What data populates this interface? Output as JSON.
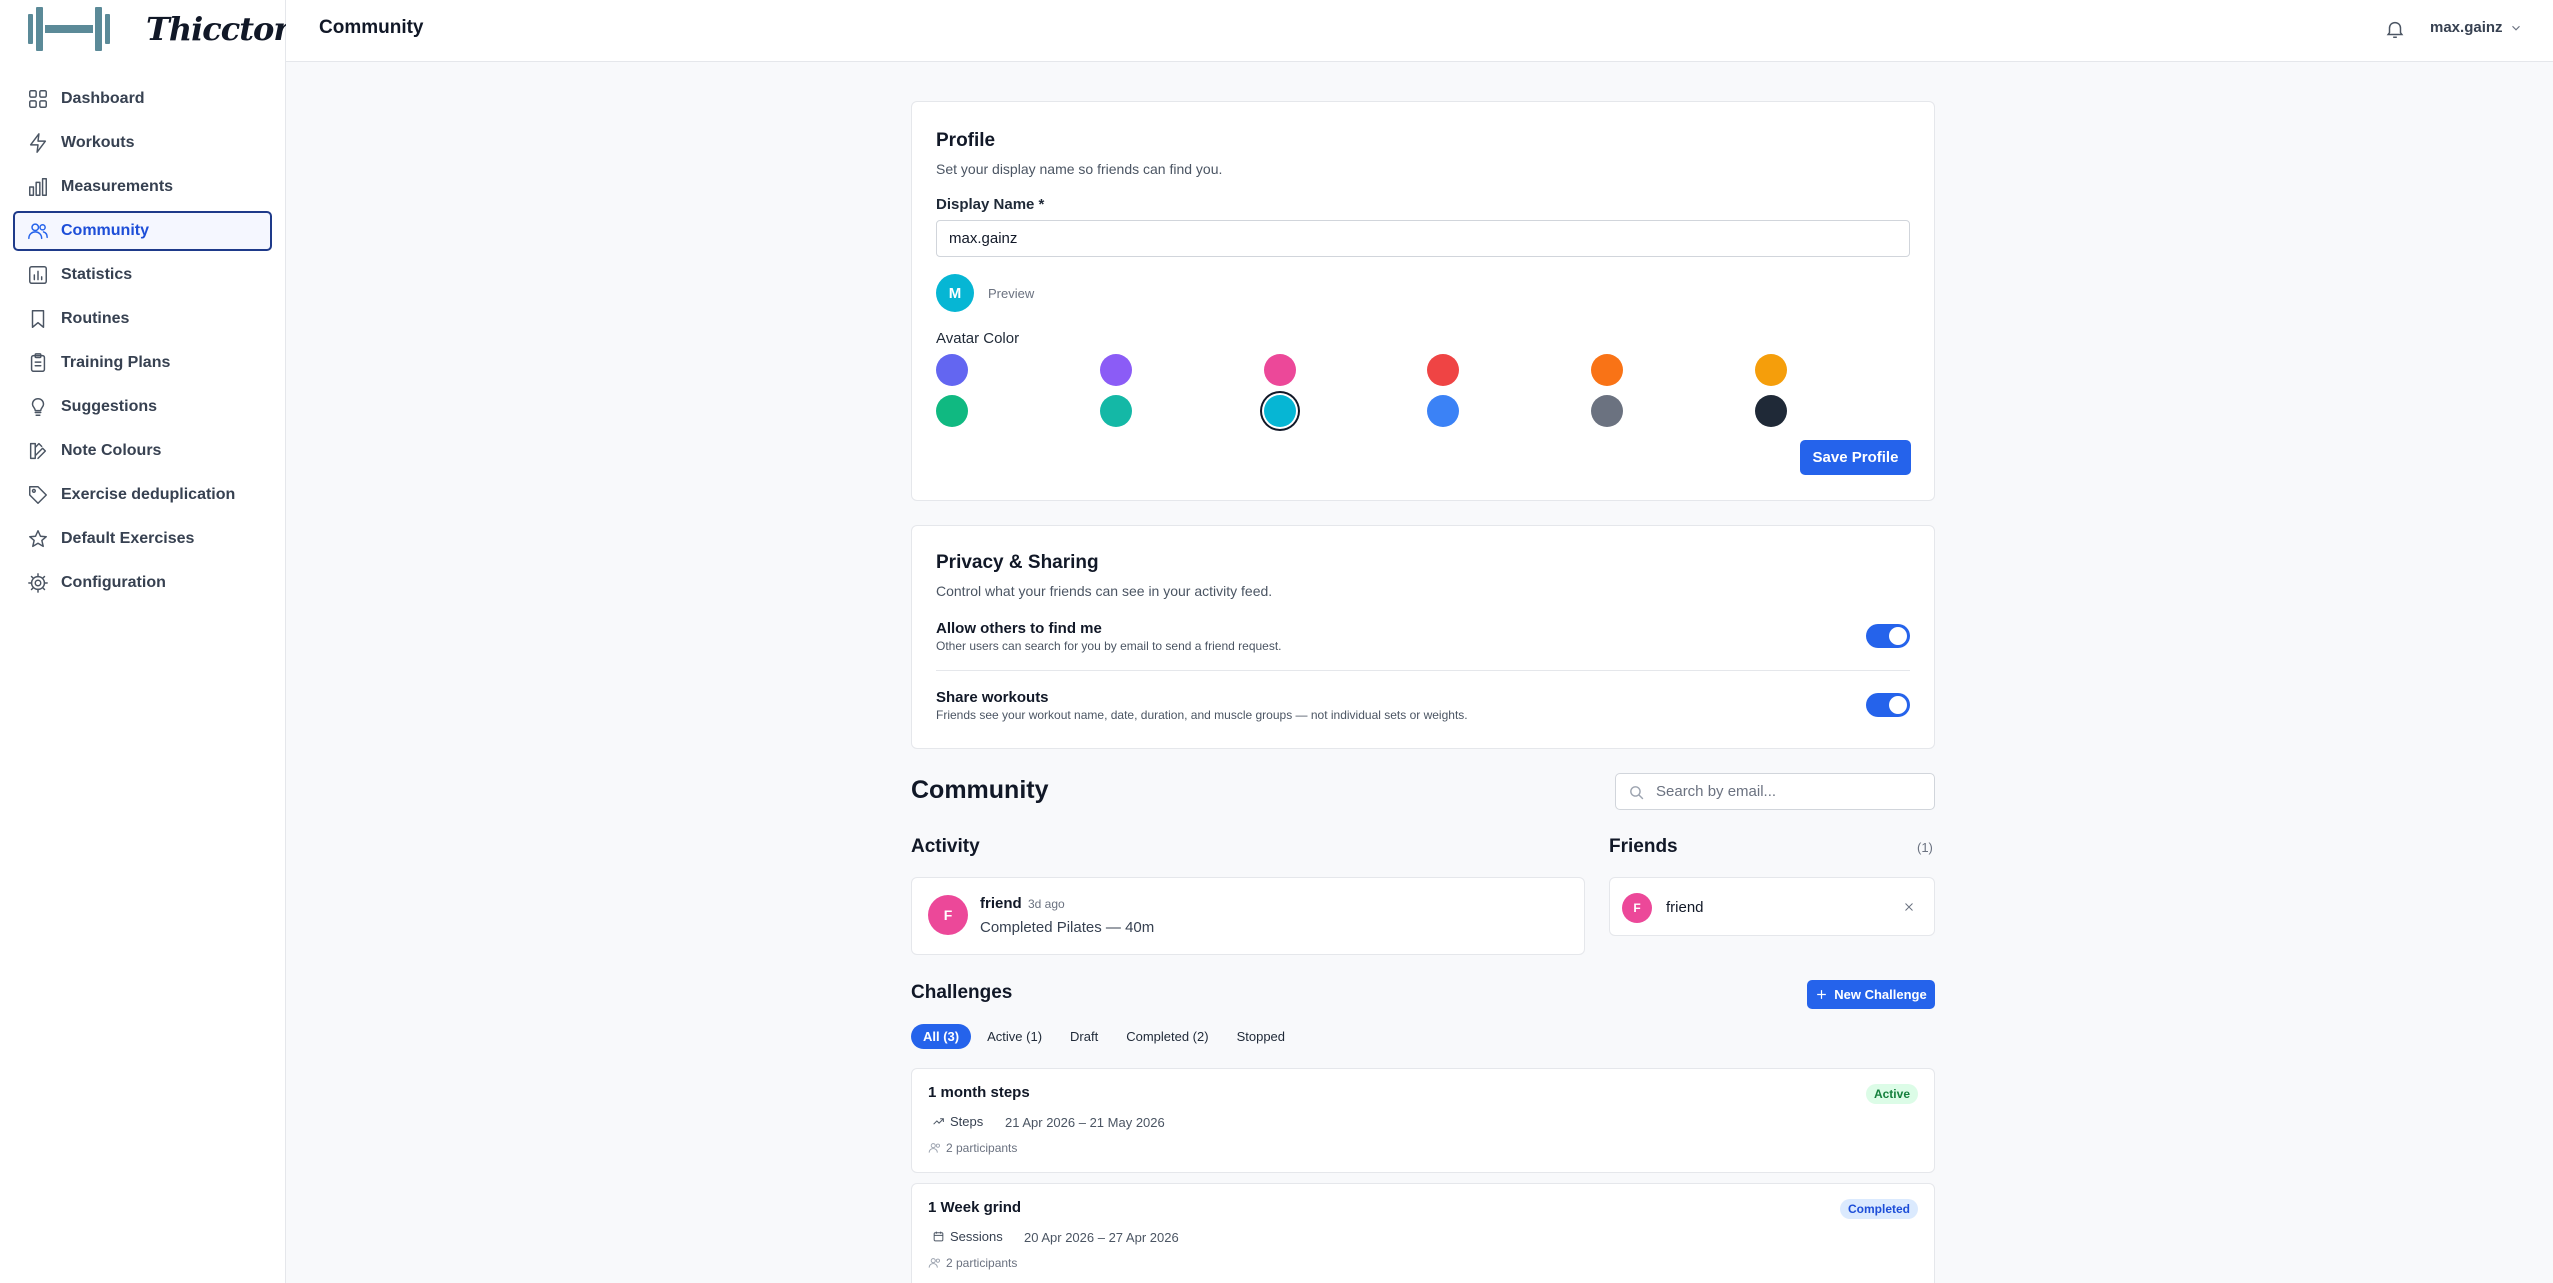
{
  "app": {
    "logo_text": "Thicctory"
  },
  "sidebar": {
    "items": [
      {
        "label": "Dashboard",
        "icon": "grid-icon"
      },
      {
        "label": "Workouts",
        "icon": "lightning-icon"
      },
      {
        "label": "Measurements",
        "icon": "bar-chart-icon"
      },
      {
        "label": "Community",
        "icon": "users-icon",
        "active": true
      },
      {
        "label": "Statistics",
        "icon": "chart-box-icon"
      },
      {
        "label": "Routines",
        "icon": "bookmark-icon"
      },
      {
        "label": "Training Plans",
        "icon": "clipboard-icon"
      },
      {
        "label": "Suggestions",
        "icon": "lightbulb-icon"
      },
      {
        "label": "Note Colours",
        "icon": "palette-icon"
      },
      {
        "label": "Exercise deduplication",
        "icon": "tag-icon"
      },
      {
        "label": "Default Exercises",
        "icon": "star-icon"
      },
      {
        "label": "Configuration",
        "icon": "gear-icon"
      }
    ]
  },
  "header": {
    "title": "Community",
    "user": "max.gainz"
  },
  "profile": {
    "title": "Profile",
    "subtitle": "Set your display name so friends can find you.",
    "display_name_label": "Display Name *",
    "display_name_value": "max.gainz",
    "preview_initial": "M",
    "preview_label": "Preview",
    "avatar_color_label": "Avatar Color",
    "selected_color": "#06b6d4",
    "colors": [
      "#6366f1",
      "#8b5cf6",
      "#ec4899",
      "#ef4444",
      "#f97316",
      "#f59e0b",
      "#10b981",
      "#14b8a6",
      "#06b6d4",
      "#3b82f6",
      "#6b7280",
      "#1f2937"
    ],
    "save_label": "Save Profile"
  },
  "privacy": {
    "title": "Privacy & Sharing",
    "subtitle": "Control what your friends can see in your activity feed.",
    "settings": [
      {
        "title": "Allow others to find me",
        "description": "Other users can search for you by email to send a friend request.",
        "enabled": true
      },
      {
        "title": "Share workouts",
        "description": "Friends see your workout name, date, duration, and muscle groups — not individual sets or weights.",
        "enabled": true
      }
    ]
  },
  "community": {
    "title": "Community",
    "search_placeholder": "Search by email...",
    "activity_title": "Activity",
    "activity": [
      {
        "initial": "F",
        "name": "friend",
        "time": "3d ago",
        "text": "Completed Pilates — 40m",
        "color": "#ec4899"
      }
    ],
    "friends_title": "Friends",
    "friends_count": "(1)",
    "friends": [
      {
        "initial": "F",
        "name": "friend",
        "color": "#ec4899"
      }
    ]
  },
  "challenges": {
    "title": "Challenges",
    "new_label": "New Challenge",
    "tabs": [
      {
        "label": "All (3)",
        "active": true
      },
      {
        "label": "Active (1)"
      },
      {
        "label": "Draft"
      },
      {
        "label": "Completed (2)"
      },
      {
        "label": "Stopped"
      }
    ],
    "items": [
      {
        "name": "1 month steps",
        "type": "Steps",
        "type_icon": "trending-up-icon",
        "dates": "21 Apr 2026 – 21 May 2026",
        "participants": "2 participants",
        "status": "Active"
      },
      {
        "name": "1 Week grind",
        "type": "Sessions",
        "type_icon": "calendar-icon",
        "dates": "20 Apr 2026 – 27 Apr 2026",
        "participants": "2 participants",
        "status": "Completed"
      }
    ]
  }
}
